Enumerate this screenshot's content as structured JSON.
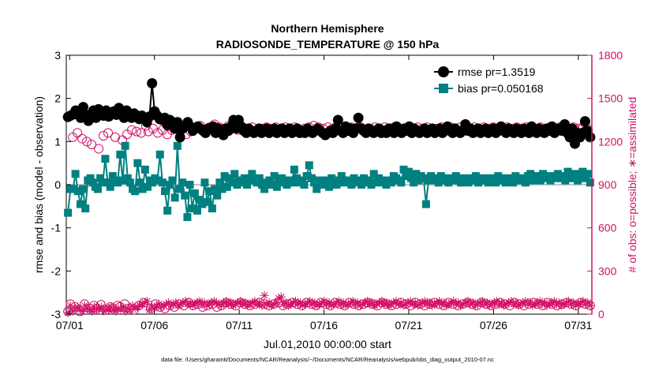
{
  "chart_data": {
    "type": "line",
    "title": "Northern Hemisphere",
    "subtitle": "RADIOSONDE_TEMPERATURE @ 150 hPa",
    "xlabel": "Jul.01,2010 00:00:00 start",
    "ylabel": "rmse and bias (model - observation)",
    "y2label": "# of obs: o=possible; ∗=assimilated",
    "footnote": "data file: /Users/gharamti/Documents/NCAR/Reanalysis/~/Documents/NCAR/Reanalysis/webpub/obs_diag_output_2010-07.nc",
    "xlim": [
      0.8,
      31.8
    ],
    "ylim": [
      -3,
      3
    ],
    "y2lim": [
      0,
      1800
    ],
    "x_ticks": [
      1,
      6,
      11,
      16,
      21,
      26,
      31
    ],
    "x_tick_labels": [
      "07/01",
      "07/06",
      "07/11",
      "07/16",
      "07/21",
      "07/26",
      "07/31"
    ],
    "y_ticks": [
      -3,
      -2,
      -1,
      0,
      1,
      2,
      3
    ],
    "y_tick_labels": [
      "-3",
      "-2",
      "-1",
      "0",
      "1",
      "2",
      "3"
    ],
    "y2_ticks": [
      0,
      300,
      600,
      900,
      1200,
      1500,
      1800
    ],
    "y2_tick_labels": [
      "0",
      "300",
      "600",
      "900",
      "1200",
      "1500",
      "1800"
    ],
    "legend_position": "top-right",
    "colors": {
      "rmse": "#000000",
      "bias": "#008080",
      "obs": "#d11167",
      "zero_line": "#b3b3b3",
      "axis": "#000000"
    },
    "series": [
      {
        "name": "rmse",
        "legend": "rmse  pr=1.3519",
        "marker": "filled-circle",
        "axis": "left",
        "values": [
          1.57,
          1.6,
          1.63,
          1.72,
          1.62,
          1.55,
          1.8,
          1.62,
          1.48,
          1.63,
          1.72,
          1.55,
          1.75,
          1.65,
          1.6,
          1.72,
          1.58,
          1.65,
          1.7,
          1.62,
          1.78,
          1.68,
          1.55,
          1.72,
          1.62,
          1.55,
          1.65,
          1.6,
          1.52,
          1.6,
          1.55,
          1.45,
          1.58,
          2.35,
          1.7,
          1.6,
          1.52,
          1.5,
          1.55,
          1.38,
          1.5,
          1.45,
          1.3,
          1.45,
          1.1,
          1.3,
          1.35,
          1.45,
          1.35,
          1.25,
          1.3,
          1.35,
          1.3,
          1.25,
          1.2,
          1.3,
          1.3,
          1.35,
          1.2,
          1.3,
          1.25,
          1.15,
          1.3,
          1.25,
          1.35,
          1.5,
          1.3,
          1.5,
          1.35,
          1.25,
          1.2,
          1.3,
          1.25,
          1.2,
          1.25,
          1.3,
          1.2,
          1.25,
          1.3,
          1.2,
          1.25,
          1.3,
          1.2,
          1.25,
          1.3,
          1.2,
          1.25,
          1.3,
          1.2,
          1.25,
          1.3,
          1.2,
          1.25,
          1.2,
          1.3,
          1.25,
          1.2,
          1.25,
          1.3,
          1.25,
          1.2,
          1.15,
          1.2,
          1.25,
          1.2,
          1.3,
          1.5,
          1.25,
          1.2,
          1.35,
          1.25,
          1.3,
          1.2,
          1.3,
          1.55,
          1.3,
          1.25,
          1.2,
          1.3,
          1.25,
          1.2,
          1.25,
          1.3,
          1.2,
          1.25,
          1.2,
          1.3,
          1.25,
          1.2,
          1.35,
          1.25,
          1.2,
          1.3,
          1.25,
          1.35,
          1.2,
          1.3,
          1.25,
          1.2,
          1.25,
          1.3,
          1.2,
          1.25,
          1.3,
          1.2,
          1.25,
          1.3,
          1.2,
          1.25,
          1.35,
          1.25,
          1.2,
          1.3,
          1.25,
          1.2,
          1.25,
          1.4,
          1.25,
          1.3,
          1.2,
          1.25,
          1.3,
          1.2,
          1.25,
          1.3,
          1.2,
          1.25,
          1.3,
          1.2,
          1.25,
          1.35,
          1.25,
          1.2,
          1.3,
          1.25,
          1.2,
          1.3,
          1.25,
          1.2,
          1.3,
          1.25,
          1.2,
          1.35,
          1.25,
          1.2,
          1.3,
          1.25,
          1.2,
          1.3,
          1.25,
          1.35,
          1.2,
          1.25,
          1.3,
          1.25,
          1.4,
          1.2,
          1.1,
          1.3,
          0.95,
          1.2,
          1.1,
          1.2,
          1.47,
          1.25,
          1.1
        ]
      },
      {
        "name": "bias",
        "legend": "bias  pr=0.050168",
        "marker": "filled-square",
        "axis": "left",
        "values": [
          -0.65,
          -0.1,
          -0.1,
          0.25,
          -0.15,
          -0.45,
          -0.1,
          -0.55,
          0.1,
          0.15,
          0.05,
          -0.05,
          -0.1,
          0.15,
          0.05,
          0.6,
          0.05,
          -0.05,
          0.2,
          0.1,
          0.05,
          0.7,
          0.1,
          0.9,
          0.15,
          0.05,
          -0.1,
          -0.15,
          0.5,
          0.05,
          -0.1,
          0.35,
          -0.05,
          0.1,
          0.05,
          0.15,
          0.1,
          0.7,
          0.05,
          -0.15,
          -0.6,
          0.0,
          0.1,
          -0.3,
          0.9,
          -0.1,
          0.05,
          -0.25,
          -0.75,
          0.0,
          -0.55,
          -0.2,
          -0.6,
          -0.35,
          -0.45,
          0.05,
          -0.4,
          -0.15,
          -0.55,
          -0.1,
          -0.25,
          0.05,
          -0.1,
          0.2,
          -0.05,
          0.15,
          0.05,
          0.25,
          0.0,
          0.1,
          0.05,
          0.15,
          0.0,
          0.1,
          0.25,
          0.1,
          0.05,
          0.15,
          0.0,
          -0.1,
          0.05,
          0.1,
          0.0,
          0.2,
          -0.05,
          0.1,
          0.15,
          0.05,
          0.0,
          0.1,
          0.05,
          0.35,
          0.15,
          0.05,
          0.1,
          0.0,
          0.2,
          0.45,
          0.15,
          0.05,
          -0.1,
          0.1,
          0.05,
          0.0,
          0.1,
          -0.05,
          0.15,
          0.1,
          0.0,
          0.05,
          0.2,
          0.1,
          0.05,
          0.1,
          0.0,
          0.15,
          0.05,
          0.1,
          0.0,
          0.15,
          0.05,
          0.1,
          0.0,
          0.25,
          0.05,
          0.15,
          0.1,
          0.05,
          0.0,
          0.1,
          0.05,
          0.2,
          0.15,
          0.1,
          0.05,
          0.35,
          0.2,
          0.3,
          0.15,
          0.05,
          0.25,
          0.1,
          0.2,
          0.15,
          -0.45,
          0.1,
          0.2,
          0.15,
          0.1,
          0.05,
          0.2,
          0.1,
          0.15,
          0.05,
          0.1,
          0.15,
          0.2,
          0.1,
          0.05,
          0.15,
          0.1,
          0.05,
          0.15,
          0.1,
          0.2,
          0.05,
          0.1,
          0.15,
          0.1,
          0.05,
          0.15,
          0.1,
          0.05,
          0.2,
          0.1,
          0.15,
          0.05,
          0.1,
          0.15,
          0.05,
          0.2,
          0.1,
          0.15,
          0.1,
          0.05,
          0.2,
          0.25,
          0.1,
          0.15,
          0.2,
          0.1,
          0.25,
          0.15,
          0.2,
          0.1,
          0.15,
          0.2,
          0.25,
          0.15,
          0.2,
          0.1,
          0.3,
          0.2,
          0.15,
          0.25,
          0.1,
          0.2,
          0.3,
          0.15,
          0.25,
          0.05
        ]
      },
      {
        "name": "obs possible",
        "marker": "open-circle",
        "axis": "right",
        "values": [
          20,
          70,
          1230,
          50,
          1260,
          20,
          1220,
          70,
          1200,
          40,
          1180,
          60,
          40,
          1150,
          65,
          1240,
          30,
          1260,
          50,
          40,
          1230,
          60,
          50,
          1210,
          70,
          1250,
          40,
          1280,
          30,
          1270,
          60,
          1260,
          80,
          1310,
          1270,
          40,
          1290,
          70,
          1260,
          50,
          1280,
          40,
          1250,
          60,
          1280,
          50,
          1300,
          70,
          1280,
          60,
          1250,
          80,
          1270,
          60,
          1290,
          70,
          1310,
          50,
          1270,
          60,
          1300,
          70,
          1320,
          50,
          1300,
          60,
          1290,
          80,
          1310,
          70,
          1300,
          60,
          1280,
          80,
          1300,
          70,
          1290,
          60,
          1300,
          70,
          1280,
          80,
          1290,
          70,
          1300,
          60,
          1290,
          70,
          1300,
          80,
          1290,
          60,
          1300,
          70,
          1290,
          80,
          1300,
          70,
          1280,
          60,
          1290,
          80,
          1300,
          70,
          1310,
          60,
          1300,
          80,
          1290,
          70,
          1300,
          60,
          1290,
          80,
          1310,
          70,
          1300,
          60,
          1290,
          80,
          1300,
          70,
          1290,
          60,
          1300,
          70,
          1280,
          80,
          1290,
          70,
          1300,
          60,
          1290,
          80,
          1300,
          70,
          1290,
          60,
          1300,
          70,
          1280,
          80,
          1290,
          70,
          1300,
          60,
          1290,
          80,
          1300,
          70,
          1290,
          60,
          1300,
          70,
          1280,
          80,
          1290,
          70,
          1300,
          60,
          1290,
          80,
          1300,
          70,
          1290,
          60,
          1300,
          70,
          1280,
          80,
          1290,
          70,
          1300,
          60,
          1290,
          80,
          1300,
          70,
          1290,
          60,
          1300,
          70,
          1280,
          80,
          1290,
          70,
          1300,
          60,
          1290,
          80,
          1300,
          70,
          1290,
          60,
          1300,
          70,
          1280,
          80,
          1290,
          70,
          1300,
          60,
          1290,
          80,
          1300,
          70,
          1290,
          60,
          1300,
          70,
          1280,
          80,
          1290,
          70,
          1300,
          60,
          1290,
          80,
          1300,
          70,
          1290,
          60
        ]
      },
      {
        "name": "obs assimilated",
        "marker": "asterisk",
        "axis": "right",
        "values": [
          10,
          60,
          20,
          40,
          50,
          30,
          20,
          60,
          40,
          30,
          20,
          50,
          30,
          40,
          50,
          20,
          30,
          40,
          50,
          30,
          20,
          40,
          30,
          50,
          20,
          40,
          30,
          60,
          40,
          50,
          60,
          70,
          80,
          90,
          30,
          50,
          40,
          60,
          70,
          50,
          60,
          70,
          80,
          60,
          70,
          80,
          60,
          70,
          80,
          90,
          70,
          80,
          60,
          70,
          80,
          90,
          70,
          80,
          60,
          70,
          80,
          90,
          80,
          70,
          60,
          80,
          90,
          70,
          80,
          60,
          70,
          80,
          90,
          70,
          80,
          60,
          70,
          80,
          90,
          70,
          80,
          60,
          130,
          70,
          80,
          60,
          70,
          80,
          110,
          120,
          70,
          80,
          60,
          70,
          80,
          90,
          70,
          80,
          60,
          70,
          80,
          90,
          70,
          80,
          60,
          70,
          80,
          90,
          70,
          80,
          60,
          70,
          80,
          90,
          70,
          80,
          60,
          70,
          80,
          90,
          70,
          80,
          60,
          70,
          80,
          90,
          70,
          80,
          60,
          70,
          80,
          90,
          70,
          80,
          60,
          70,
          80,
          90,
          70,
          80,
          60,
          70,
          80,
          90,
          70,
          80,
          60,
          70,
          80,
          90,
          70,
          80,
          60,
          70,
          80,
          90,
          70,
          80,
          60,
          70,
          80,
          90,
          70,
          80,
          60,
          70,
          80,
          90,
          70,
          80,
          60,
          70,
          80,
          90,
          70,
          80,
          60,
          70,
          80,
          90,
          70,
          80,
          60,
          70,
          80,
          90,
          70,
          80,
          60,
          70,
          80,
          90,
          70,
          80,
          60,
          70,
          80,
          90,
          70,
          80,
          60,
          70,
          80,
          90,
          70,
          80,
          60,
          70,
          80,
          90,
          70,
          80,
          60,
          70,
          80,
          90,
          70,
          80,
          60
        ]
      }
    ]
  }
}
